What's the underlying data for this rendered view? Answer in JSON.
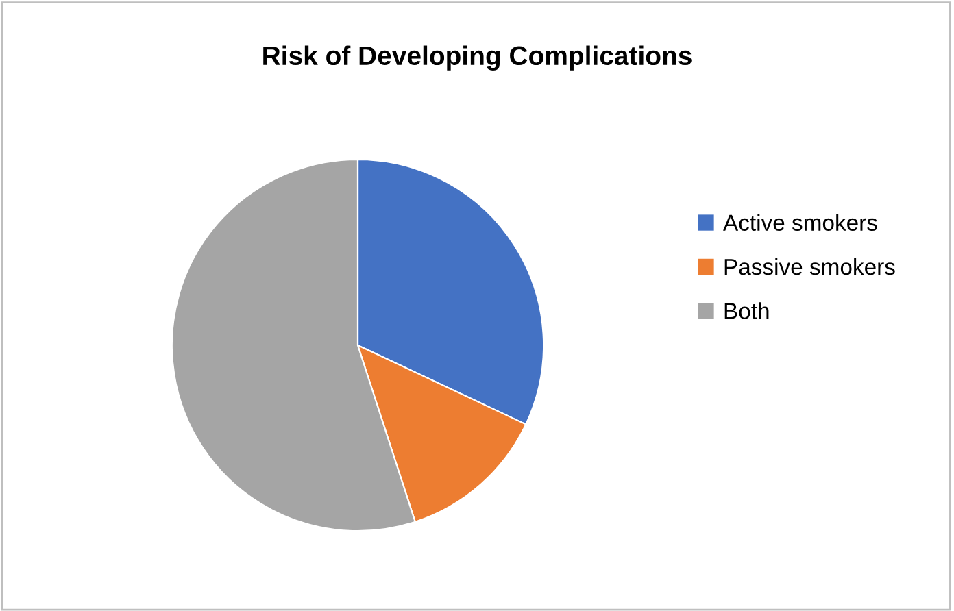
{
  "chart_data": {
    "type": "pie",
    "title": "Risk of Developing Complications",
    "categories": [
      "Active smokers",
      "Passive smokers",
      "Both"
    ],
    "values": [
      32,
      13,
      55
    ],
    "colors": [
      "#4472c4",
      "#ed7d31",
      "#a5a5a5"
    ],
    "legend": "right"
  }
}
